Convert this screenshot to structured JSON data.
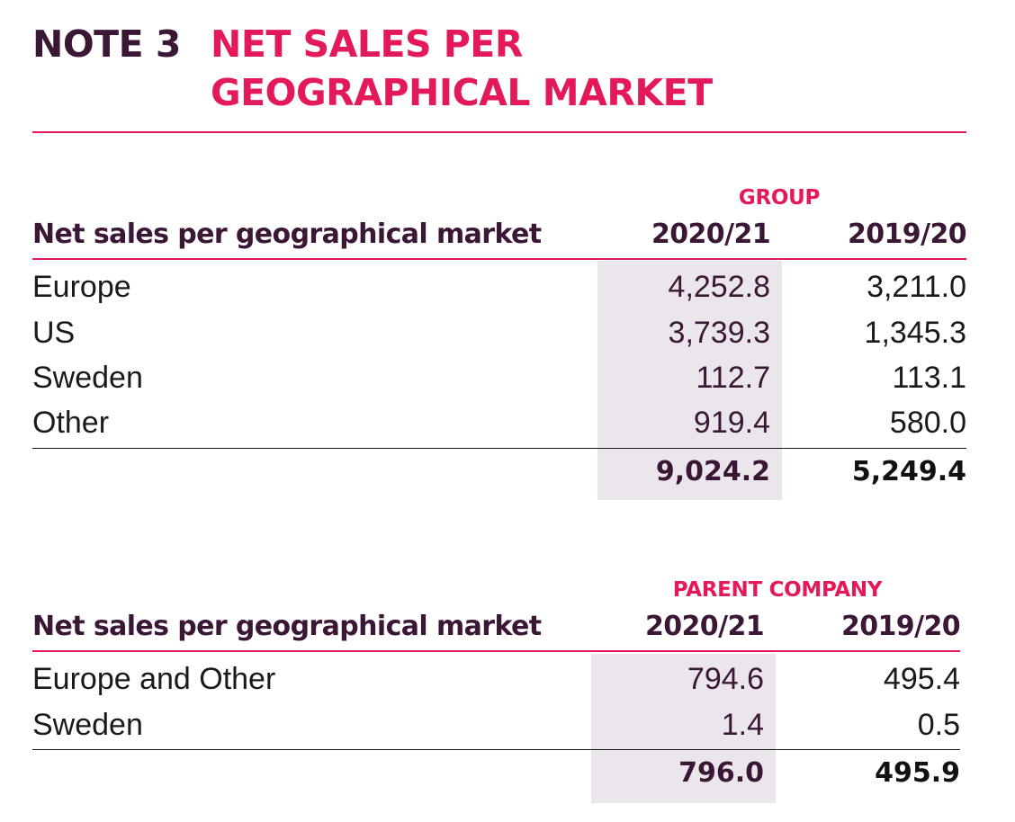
{
  "title": {
    "note_label": "NOTE 3",
    "line1": "NET SALES PER",
    "line2": "GEOGRAPHICAL MARKET"
  },
  "colors": {
    "accent": "#e3195a",
    "heading": "#3b1736",
    "shade": "#ebe5ec"
  },
  "group": {
    "section_label": "GROUP",
    "header_label": "Net sales per geographical market",
    "year_current": "2020/21",
    "year_previous": "2019/20",
    "rows": [
      {
        "label": "Europe",
        "current": "4,252.8",
        "previous": "3,211.0"
      },
      {
        "label": "US",
        "current": "3,739.3",
        "previous": "1,345.3"
      },
      {
        "label": "Sweden",
        "current": "112.7",
        "previous": "113.1"
      },
      {
        "label": "Other",
        "current": "919.4",
        "previous": "580.0"
      }
    ],
    "total_current": "9,024.2",
    "total_previous": "5,249.4"
  },
  "parent": {
    "section_label": "PARENT COMPANY",
    "header_label": "Net sales per geographical market",
    "year_current": "2020/21",
    "year_previous": "2019/20",
    "rows": [
      {
        "label": "Europe and Other",
        "current": "794.6",
        "previous": "495.4"
      },
      {
        "label": "Sweden",
        "current": "1.4",
        "previous": "0.5"
      }
    ],
    "total_current": "796.0",
    "total_previous": "495.9"
  }
}
